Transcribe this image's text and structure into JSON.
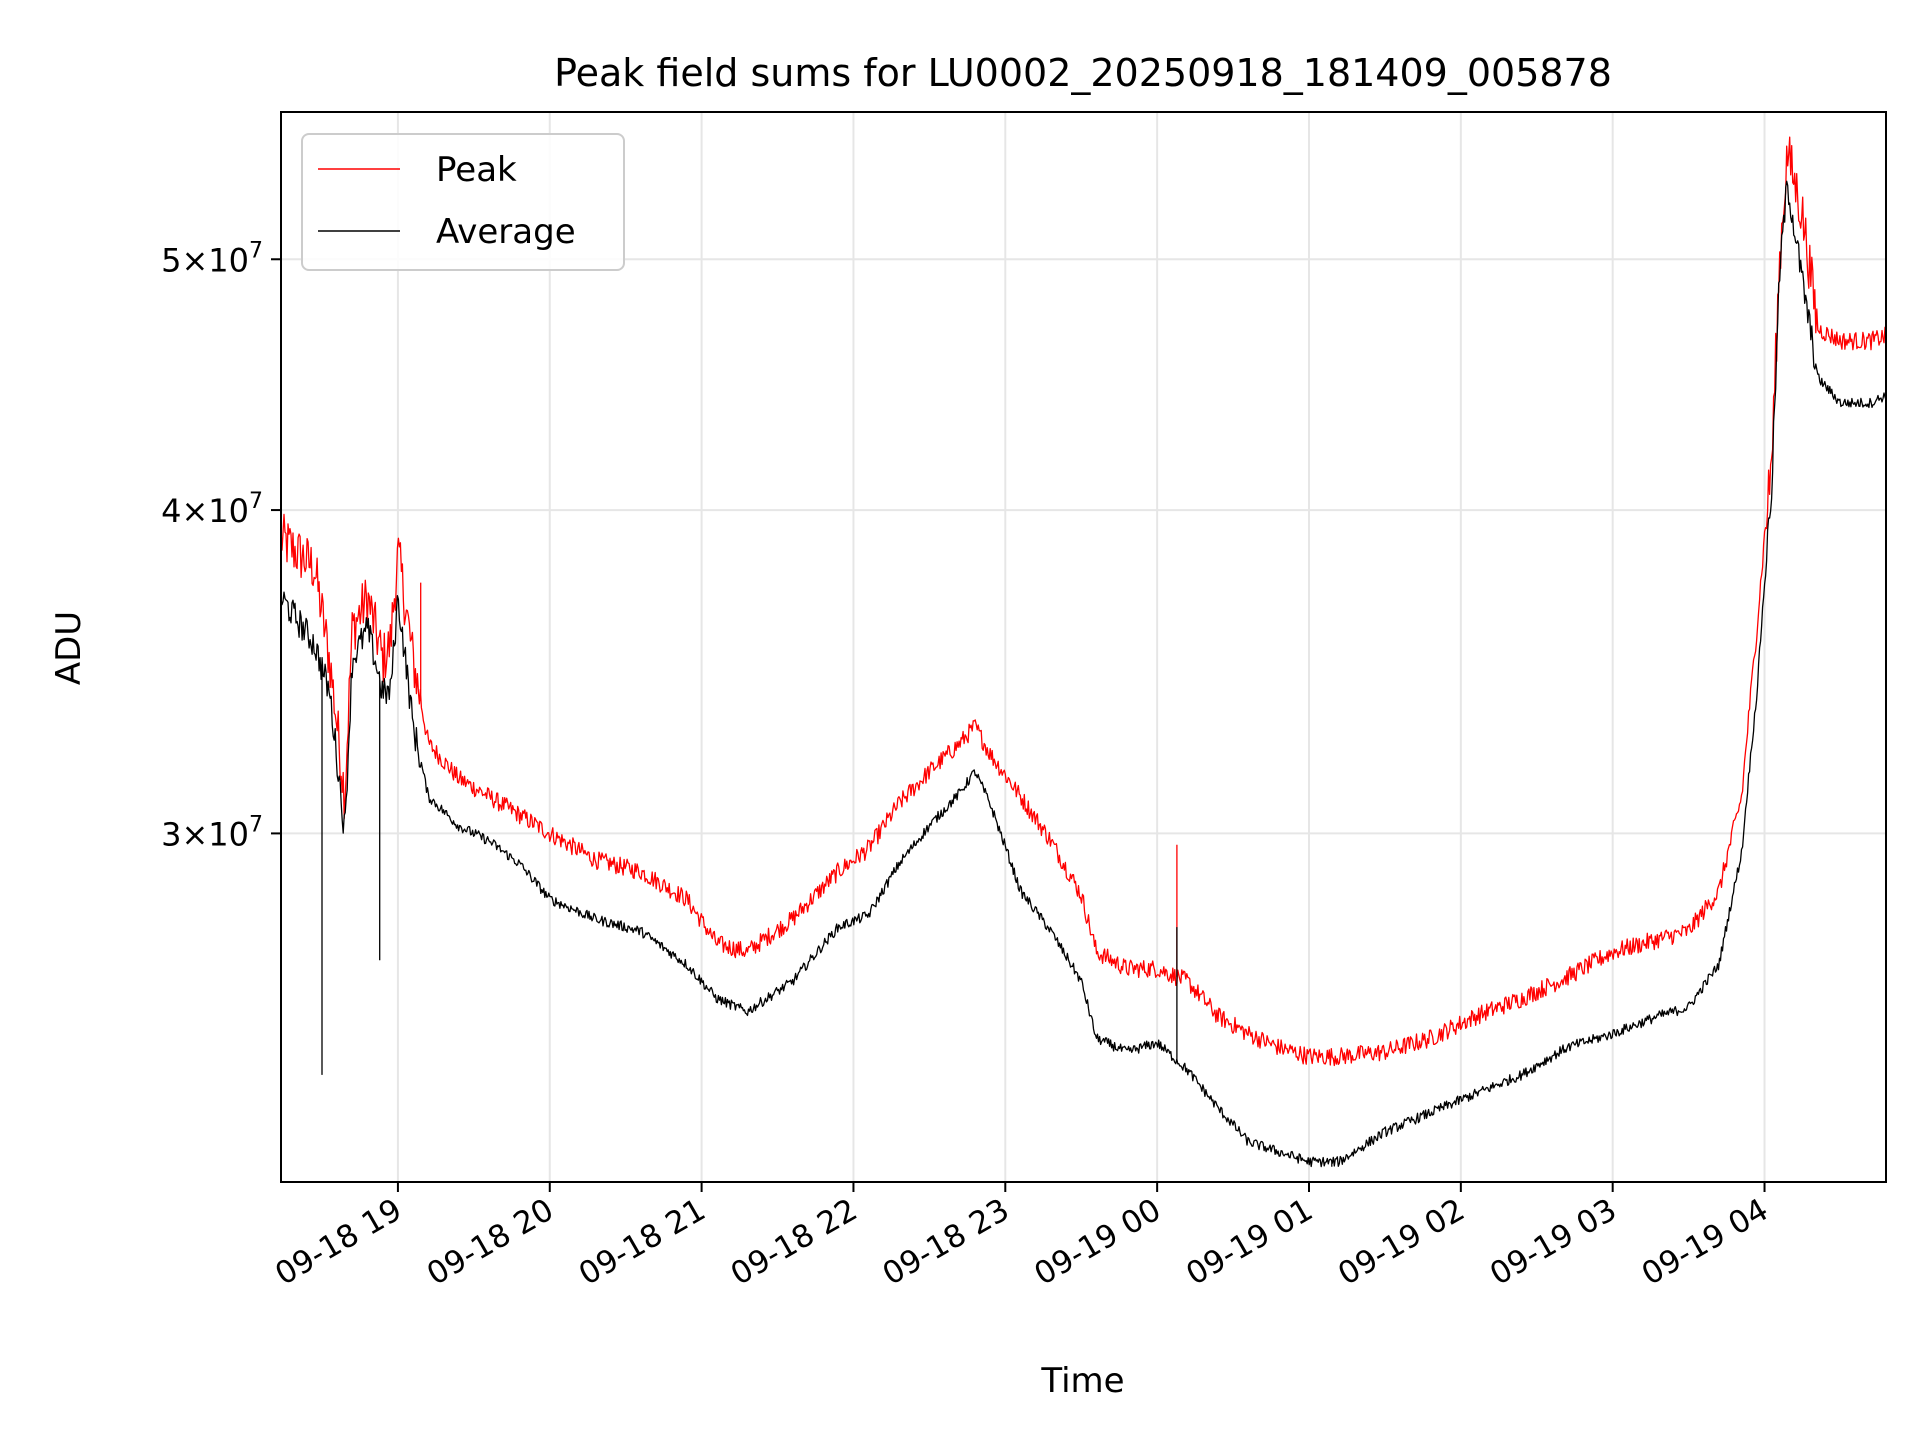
{
  "chart_data": {
    "type": "line",
    "title": "Peak field sums for LU0002_20250918_181409_005878",
    "xlabel": "Time",
    "ylabel": "ADU",
    "yscale": "log",
    "x_unit": "hours since 09-18 19:00",
    "xlim": [
      -0.77,
      9.8
    ],
    "ylim": [
      22000000,
      57000000
    ],
    "grid": true,
    "legend_position": "upper-left",
    "x_ticks": [
      {
        "value": 0,
        "label": "09-18 19"
      },
      {
        "value": 1,
        "label": "09-18 20"
      },
      {
        "value": 2,
        "label": "09-18 21"
      },
      {
        "value": 3,
        "label": "09-18 22"
      },
      {
        "value": 4,
        "label": "09-18 23"
      },
      {
        "value": 5,
        "label": "09-19 00"
      },
      {
        "value": 6,
        "label": "09-19 01"
      },
      {
        "value": 7,
        "label": "09-19 02"
      },
      {
        "value": 8,
        "label": "09-19 03"
      },
      {
        "value": 9,
        "label": "09-19 04"
      }
    ],
    "y_ticks": [
      {
        "value": 30000000,
        "mantissa": "3",
        "exponent": "7"
      },
      {
        "value": 40000000,
        "mantissa": "4",
        "exponent": "7"
      },
      {
        "value": 50000000,
        "mantissa": "5",
        "exponent": "7"
      }
    ],
    "series": [
      {
        "name": "Peak",
        "color": "#ff0000",
        "noise": 0.9,
        "x": [
          -0.77,
          -0.55,
          -0.45,
          -0.35,
          -0.3,
          -0.2,
          -0.15,
          -0.1,
          -0.05,
          0.0,
          0.1,
          0.2,
          0.4,
          0.6,
          0.8,
          1.0,
          1.3,
          1.6,
          1.9,
          2.1,
          2.3,
          2.6,
          2.9,
          3.1,
          3.3,
          3.5,
          3.7,
          3.8,
          3.9,
          4.1,
          4.3,
          4.5,
          4.6,
          4.8,
          5.0,
          5.2,
          5.4,
          5.6,
          5.8,
          6.0,
          6.2,
          6.5,
          6.8,
          7.1,
          7.4,
          7.7,
          8.0,
          8.3,
          8.5,
          8.7,
          8.85,
          8.95,
          9.05,
          9.1,
          9.15,
          9.25,
          9.35,
          9.5,
          9.7,
          9.8
        ],
        "values": [
          39000000,
          38000000,
          35000000,
          31000000,
          36000000,
          37000000,
          36000000,
          35000000,
          35500000,
          38500000,
          35000000,
          32500000,
          31500000,
          31000000,
          30500000,
          30000000,
          29300000,
          29000000,
          28300000,
          27200000,
          27000000,
          27800000,
          29000000,
          29600000,
          30800000,
          31700000,
          32500000,
          33000000,
          32200000,
          31000000,
          29800000,
          28400000,
          27000000,
          26600000,
          26600000,
          26300000,
          25500000,
          25100000,
          24800000,
          24600000,
          24600000,
          24700000,
          25000000,
          25500000,
          25900000,
          26400000,
          27000000,
          27300000,
          27500000,
          28500000,
          31000000,
          36000000,
          42000000,
          50000000,
          55000000,
          52000000,
          47000000,
          46500000,
          46500000,
          46700000
        ]
      },
      {
        "name": "Average",
        "color": "#000000",
        "noise": 0.5,
        "x": [
          -0.77,
          -0.55,
          -0.45,
          -0.35,
          -0.3,
          -0.2,
          -0.15,
          -0.1,
          -0.05,
          0.0,
          0.1,
          0.2,
          0.4,
          0.6,
          0.8,
          1.0,
          1.3,
          1.6,
          1.9,
          2.1,
          2.3,
          2.6,
          2.9,
          3.1,
          3.3,
          3.5,
          3.7,
          3.8,
          3.9,
          4.1,
          4.3,
          4.5,
          4.6,
          4.8,
          5.0,
          5.2,
          5.4,
          5.6,
          5.8,
          6.0,
          6.2,
          6.5,
          6.8,
          7.1,
          7.4,
          7.7,
          8.0,
          8.3,
          8.5,
          8.7,
          8.85,
          8.95,
          9.05,
          9.1,
          9.15,
          9.25,
          9.35,
          9.5,
          9.7,
          9.8
        ],
        "values": [
          37000000,
          35500000,
          34000000,
          30000000,
          35000000,
          36000000,
          35000000,
          34000000,
          34000000,
          37000000,
          33000000,
          31000000,
          30200000,
          29800000,
          29200000,
          28300000,
          27800000,
          27500000,
          26700000,
          25900000,
          25600000,
          26300000,
          27600000,
          27900000,
          29200000,
          30200000,
          31100000,
          31700000,
          30800000,
          28500000,
          27500000,
          26300000,
          25000000,
          24700000,
          24900000,
          24300000,
          23500000,
          22800000,
          22600000,
          22400000,
          22400000,
          23000000,
          23400000,
          23800000,
          24200000,
          24800000,
          25100000,
          25500000,
          25700000,
          26700000,
          29500000,
          34000000,
          41000000,
          49500000,
          53500000,
          49000000,
          45000000,
          44000000,
          44000000,
          44300000
        ]
      }
    ],
    "spikes": [
      {
        "series": "Peak",
        "x": 0.15,
        "value": 37500000
      },
      {
        "series": "Peak",
        "x": 5.13,
        "value": 29700000
      },
      {
        "series": "Average",
        "x": -0.5,
        "value": 24200000
      },
      {
        "series": "Average",
        "x": -0.12,
        "value": 26800000
      },
      {
        "series": "Average",
        "x": 5.13,
        "value": 27600000
      },
      {
        "series": "Average",
        "x": 6.15,
        "value": 22300000
      }
    ]
  }
}
